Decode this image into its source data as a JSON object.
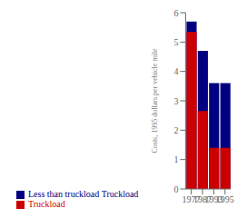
{
  "chart_data": {
    "type": "bar",
    "categories": [
      "1977",
      "1987",
      "1993",
      "1995"
    ],
    "series": [
      {
        "name": "Less than truckload Truckload",
        "color": "#000080",
        "values": [
          5.7,
          4.7,
          3.6,
          3.6
        ]
      },
      {
        "name": "Truckload",
        "color": "#cc0000",
        "values": [
          5.35,
          2.65,
          1.4,
          1.4
        ]
      }
    ],
    "ylabel": "Costs, 1995 dollars per vehicle mile",
    "ylim": [
      0,
      6
    ],
    "yticks": [
      0,
      1,
      2,
      3,
      4,
      5,
      6
    ],
    "grid": false,
    "legend": "bottom"
  }
}
